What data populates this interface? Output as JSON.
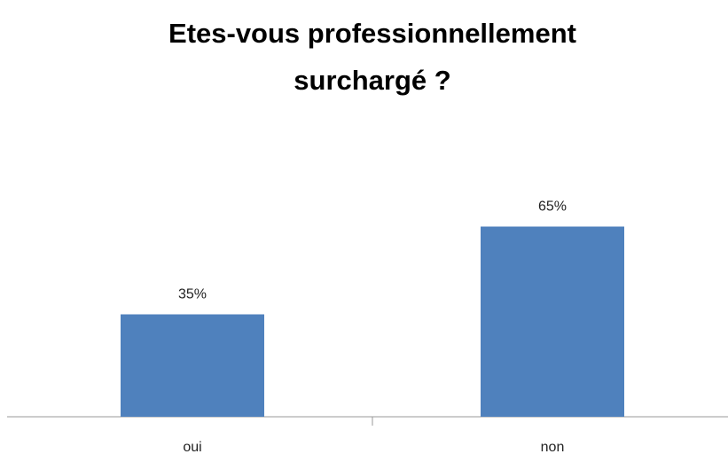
{
  "chart_data": {
    "type": "bar",
    "title": [
      "Etes-vous professionnellement",
      "surchargé ?"
    ],
    "categories": [
      "oui",
      "non"
    ],
    "values": [
      35,
      65
    ],
    "value_labels": [
      "35%",
      "65%"
    ],
    "color": "#4f81bd"
  }
}
